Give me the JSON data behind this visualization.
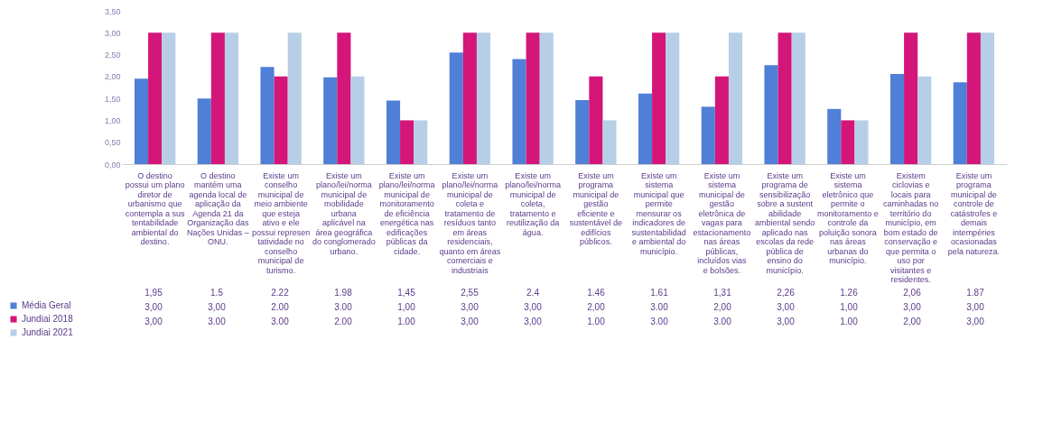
{
  "chart_data": {
    "type": "bar",
    "categories": [
      "O destino possui um plano diretor de urbanismo que contempla a sustentabilidade ambiental do destino.",
      "O destino mantém uma agenda local de aplicação da Agenda 21 da Organização das Nações Unidas – ONU.",
      "Existe um conselho municipal de meio ambiente que esteja ativo e ele possui representatividade no conselho municipal de turismo.",
      "Existe um plano/lei/norma municipal de mobilidade urbana aplicável na área geográfica do conglomerado urbano.",
      "Existe um plano/lei/norma municipal de monitoramento de eficiência energética nas edificações públicas da cidade.",
      "Existe um plano/lei/norma municipal de coleta e tratamento de resíduos tanto em áreas residenciais, quanto em áreas comerciais e industriais",
      "Existe um plano/lei/norma municipal de coleta, tratamento e reutilização da água.",
      "Existe um programa municipal de gestão eficiente e sustentável de edifícios públicos.",
      "Existe um sistema municipal que permite mensurar os indicadores de sustentabilidade ambiental do município.",
      "Existe um sistema municipal de gestão eletrônica de vagas para estacionamento nas áreas públicas, incluídos vias e bolsões.",
      "Existe um programa de sensibilização sobre a sustentabilidade ambiental sendo aplicado nas escolas da rede pública de ensino do município.",
      "Existe um sistema eletrônico que permite o monitoramento e controle da poluição sonora nas áreas urbanas do município.",
      "Existem ciclovias e locais para caminhadas no território do município, em bom estado de conservação e que permita o uso por visitantes e residentes.",
      "Existe um programa municipal de controle de catástrofes e demais intempéries ocasionadas pela natureza."
    ],
    "series": [
      {
        "name": "Média Geral",
        "color": "#4f7fd6",
        "values": [
          1.95,
          1.5,
          2.22,
          1.98,
          1.45,
          2.55,
          2.4,
          1.46,
          1.61,
          1.31,
          2.26,
          1.26,
          2.06,
          1.87
        ],
        "value_labels": [
          "1,95",
          "1.5",
          "2.22",
          "1.98",
          "1,45",
          "2,55",
          "2.4",
          "1.46",
          "1.61",
          "1,31",
          "2,26",
          "1.26",
          "2,06",
          "1.87"
        ]
      },
      {
        "name": "Jundiai 2018",
        "color": "#d4157a",
        "values": [
          3,
          3,
          2,
          3,
          1,
          3,
          3,
          2,
          3,
          2,
          3,
          1,
          3,
          3
        ],
        "value_labels": [
          "3,00",
          "3,00",
          "2.00",
          "3.00",
          "1,00",
          "3,00",
          "3,00",
          "2,00",
          "3.00",
          "2,00",
          "3,00",
          "1,00",
          "3,00",
          "3,00"
        ]
      },
      {
        "name": "Jundiai 2021",
        "color": "#b7cfe6",
        "values": [
          3,
          3,
          3,
          2,
          1,
          3,
          3,
          1,
          3,
          3,
          3,
          1,
          2,
          3
        ],
        "value_labels": [
          "3,00",
          "3.00",
          "3.00",
          "2.00",
          "1.00",
          "3,00",
          "3,00",
          "1.00",
          "3.00",
          "3.00",
          "3,00",
          "1.00",
          "2,00",
          "3,00"
        ]
      }
    ],
    "ylim": [
      0,
      3.5
    ],
    "yticks": [
      {
        "value": 0,
        "label": "0,00"
      },
      {
        "value": 0.5,
        "label": "0,50"
      },
      {
        "value": 1,
        "label": "1,00"
      },
      {
        "value": 1.5,
        "label": "1,50"
      },
      {
        "value": 2,
        "label": "2,00"
      },
      {
        "value": 2.5,
        "label": "2,50"
      },
      {
        "value": 3,
        "label": "3,00"
      },
      {
        "value": 3.5,
        "label": "3,50"
      }
    ],
    "legend": "bottom left"
  }
}
